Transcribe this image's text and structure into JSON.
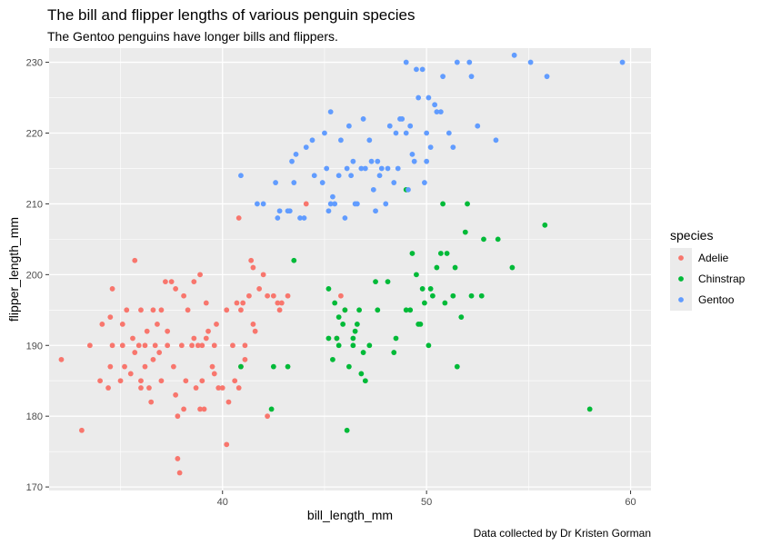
{
  "chart_data": {
    "type": "scatter",
    "title": "The bill and flipper lengths of various penguin species",
    "subtitle": "The Gentoo penguins have longer bills and flippers.",
    "caption": "Data collected by Dr Kristen Gorman",
    "xlabel": "bill_length_mm",
    "ylabel": "flipper_length_mm",
    "xlim": [
      31.5,
      61.0
    ],
    "ylim": [
      169.5,
      232.0
    ],
    "x_ticks": [
      40,
      50,
      60
    ],
    "y_ticks": [
      170,
      180,
      190,
      200,
      210,
      220,
      230
    ],
    "grid": true,
    "legend": {
      "title": "species",
      "position": "right"
    },
    "colors": {
      "Adelie": "#F8766D",
      "Chinstrap": "#00BA38",
      "Gentoo": "#619CFF",
      "panel": "#EBEBEB",
      "grid": "#FFFFFF"
    },
    "series": [
      {
        "name": "Adelie",
        "color": "#F8766D",
        "points": [
          [
            32.1,
            188
          ],
          [
            33.1,
            178
          ],
          [
            33.5,
            190
          ],
          [
            34.0,
            185
          ],
          [
            34.1,
            193
          ],
          [
            34.4,
            184
          ],
          [
            34.5,
            187
          ],
          [
            34.6,
            190
          ],
          [
            34.6,
            198
          ],
          [
            35.0,
            185
          ],
          [
            35.1,
            193
          ],
          [
            35.2,
            187
          ],
          [
            35.3,
            195
          ],
          [
            35.5,
            186
          ],
          [
            35.6,
            191
          ],
          [
            35.7,
            189
          ],
          [
            35.9,
            190
          ],
          [
            36.0,
            185
          ],
          [
            36.0,
            195
          ],
          [
            36.2,
            187
          ],
          [
            36.2,
            190
          ],
          [
            36.3,
            192
          ],
          [
            36.4,
            184
          ],
          [
            36.5,
            182
          ],
          [
            36.6,
            195
          ],
          [
            36.7,
            190
          ],
          [
            36.8,
            193
          ],
          [
            36.9,
            189
          ],
          [
            37.0,
            185
          ],
          [
            37.2,
            199
          ],
          [
            37.3,
            190
          ],
          [
            37.3,
            192
          ],
          [
            37.5,
            199
          ],
          [
            37.6,
            187
          ],
          [
            37.7,
            198
          ],
          [
            37.8,
            174
          ],
          [
            37.8,
            180
          ],
          [
            37.9,
            172
          ],
          [
            38.0,
            190
          ],
          [
            38.1,
            181
          ],
          [
            38.2,
            185
          ],
          [
            38.3,
            195
          ],
          [
            38.5,
            190
          ],
          [
            38.6,
            191
          ],
          [
            38.7,
            184
          ],
          [
            38.8,
            190
          ],
          [
            38.9,
            181
          ],
          [
            39.0,
            185
          ],
          [
            39.0,
            190
          ],
          [
            39.1,
            181
          ],
          [
            39.2,
            191
          ],
          [
            39.3,
            192
          ],
          [
            39.5,
            187
          ],
          [
            39.6,
            190
          ],
          [
            39.7,
            193
          ],
          [
            39.8,
            184
          ],
          [
            40.0,
            184
          ],
          [
            40.2,
            176
          ],
          [
            40.3,
            182
          ],
          [
            40.5,
            190
          ],
          [
            40.6,
            185
          ],
          [
            40.7,
            196
          ],
          [
            40.8,
            184
          ],
          [
            40.9,
            195
          ],
          [
            41.0,
            196
          ],
          [
            41.1,
            190
          ],
          [
            41.3,
            197
          ],
          [
            41.4,
            202
          ],
          [
            41.5,
            201
          ],
          [
            41.6,
            192
          ],
          [
            41.8,
            198
          ],
          [
            42.0,
            200
          ],
          [
            42.2,
            197
          ],
          [
            42.5,
            197
          ],
          [
            42.7,
            196
          ],
          [
            42.9,
            196
          ],
          [
            43.2,
            197
          ],
          [
            44.1,
            210
          ],
          [
            45.6,
            191
          ],
          [
            45.8,
            197
          ],
          [
            46.0,
            195
          ],
          [
            42.8,
            195
          ],
          [
            42.2,
            180
          ],
          [
            41.1,
            188
          ],
          [
            40.8,
            208
          ],
          [
            40.2,
            195
          ],
          [
            39.6,
            186
          ],
          [
            39.2,
            196
          ],
          [
            38.9,
            200
          ],
          [
            38.6,
            199
          ],
          [
            38.1,
            197
          ],
          [
            37.7,
            183
          ],
          [
            37.0,
            195
          ],
          [
            36.6,
            188
          ],
          [
            36.0,
            184
          ],
          [
            35.7,
            202
          ],
          [
            35.1,
            190
          ],
          [
            34.5,
            194
          ],
          [
            40.9,
            187
          ],
          [
            41.5,
            193
          ]
        ]
      },
      {
        "name": "Chinstrap",
        "color": "#00BA38",
        "points": [
          [
            40.9,
            187
          ],
          [
            42.4,
            181
          ],
          [
            42.5,
            187
          ],
          [
            43.2,
            187
          ],
          [
            43.5,
            202
          ],
          [
            45.2,
            198
          ],
          [
            45.2,
            191
          ],
          [
            45.4,
            188
          ],
          [
            45.5,
            196
          ],
          [
            45.6,
            191
          ],
          [
            45.7,
            194
          ],
          [
            45.7,
            190
          ],
          [
            45.9,
            193
          ],
          [
            46.0,
            195
          ],
          [
            46.1,
            178
          ],
          [
            46.2,
            187
          ],
          [
            46.4,
            190
          ],
          [
            46.4,
            191
          ],
          [
            46.5,
            192
          ],
          [
            46.6,
            193
          ],
          [
            46.7,
            195
          ],
          [
            46.8,
            186
          ],
          [
            46.9,
            189
          ],
          [
            47.0,
            185
          ],
          [
            47.5,
            199
          ],
          [
            47.6,
            195
          ],
          [
            48.1,
            199
          ],
          [
            48.5,
            191
          ],
          [
            49.0,
            195
          ],
          [
            49.2,
            195
          ],
          [
            49.3,
            203
          ],
          [
            49.5,
            200
          ],
          [
            49.6,
            193
          ],
          [
            49.7,
            193
          ],
          [
            49.8,
            198
          ],
          [
            49.9,
            196
          ],
          [
            50.1,
            190
          ],
          [
            50.2,
            198
          ],
          [
            50.3,
            197
          ],
          [
            50.5,
            201
          ],
          [
            50.7,
            203
          ],
          [
            50.8,
            210
          ],
          [
            50.9,
            196
          ],
          [
            51.0,
            203
          ],
          [
            51.3,
            197
          ],
          [
            51.4,
            201
          ],
          [
            51.5,
            187
          ],
          [
            51.7,
            194
          ],
          [
            51.9,
            206
          ],
          [
            52.0,
            210
          ],
          [
            52.2,
            197
          ],
          [
            52.7,
            197
          ],
          [
            52.8,
            205
          ],
          [
            53.5,
            205
          ],
          [
            54.2,
            201
          ],
          [
            55.8,
            207
          ],
          [
            58.0,
            181
          ],
          [
            49.0,
            212
          ],
          [
            48.4,
            189
          ],
          [
            47.2,
            190
          ]
        ]
      },
      {
        "name": "Gentoo",
        "color": "#619CFF",
        "points": [
          [
            40.9,
            214
          ],
          [
            41.7,
            210
          ],
          [
            42.0,
            210
          ],
          [
            42.6,
            213
          ],
          [
            42.7,
            208
          ],
          [
            42.8,
            209
          ],
          [
            43.2,
            209
          ],
          [
            43.3,
            209
          ],
          [
            43.5,
            213
          ],
          [
            43.6,
            217
          ],
          [
            43.8,
            208
          ],
          [
            44.0,
            208
          ],
          [
            44.4,
            219
          ],
          [
            44.5,
            214
          ],
          [
            44.9,
            213
          ],
          [
            45.0,
            220
          ],
          [
            45.1,
            215
          ],
          [
            45.2,
            209
          ],
          [
            45.3,
            210
          ],
          [
            45.4,
            211
          ],
          [
            45.5,
            210
          ],
          [
            45.7,
            214
          ],
          [
            45.8,
            219
          ],
          [
            46.1,
            215
          ],
          [
            46.2,
            221
          ],
          [
            46.3,
            214
          ],
          [
            46.4,
            216
          ],
          [
            46.5,
            210
          ],
          [
            46.6,
            210
          ],
          [
            46.8,
            215
          ],
          [
            47.0,
            215
          ],
          [
            47.2,
            219
          ],
          [
            47.3,
            216
          ],
          [
            47.5,
            209
          ],
          [
            47.6,
            216
          ],
          [
            47.7,
            214
          ],
          [
            47.8,
            215
          ],
          [
            48.1,
            215
          ],
          [
            48.2,
            221
          ],
          [
            48.4,
            213
          ],
          [
            48.5,
            220
          ],
          [
            48.6,
            215
          ],
          [
            48.7,
            222
          ],
          [
            48.8,
            222
          ],
          [
            49.0,
            220
          ],
          [
            49.1,
            212
          ],
          [
            49.2,
            221
          ],
          [
            49.3,
            217
          ],
          [
            49.4,
            216
          ],
          [
            49.5,
            229
          ],
          [
            49.6,
            225
          ],
          [
            49.8,
            229
          ],
          [
            49.9,
            213
          ],
          [
            50.0,
            220
          ],
          [
            50.1,
            225
          ],
          [
            50.2,
            218
          ],
          [
            50.4,
            224
          ],
          [
            50.5,
            223
          ],
          [
            50.7,
            223
          ],
          [
            50.8,
            228
          ],
          [
            51.1,
            220
          ],
          [
            51.3,
            218
          ],
          [
            51.5,
            230
          ],
          [
            52.1,
            230
          ],
          [
            52.2,
            228
          ],
          [
            52.5,
            221
          ],
          [
            53.4,
            219
          ],
          [
            54.3,
            231
          ],
          [
            55.1,
            230
          ],
          [
            55.9,
            228
          ],
          [
            59.6,
            230
          ],
          [
            45.3,
            223
          ],
          [
            46.9,
            222
          ],
          [
            48.0,
            210
          ],
          [
            49.0,
            230
          ],
          [
            50.0,
            216
          ],
          [
            47.4,
            212
          ],
          [
            46.0,
            208
          ],
          [
            44.1,
            218
          ],
          [
            43.4,
            216
          ]
        ]
      }
    ]
  }
}
